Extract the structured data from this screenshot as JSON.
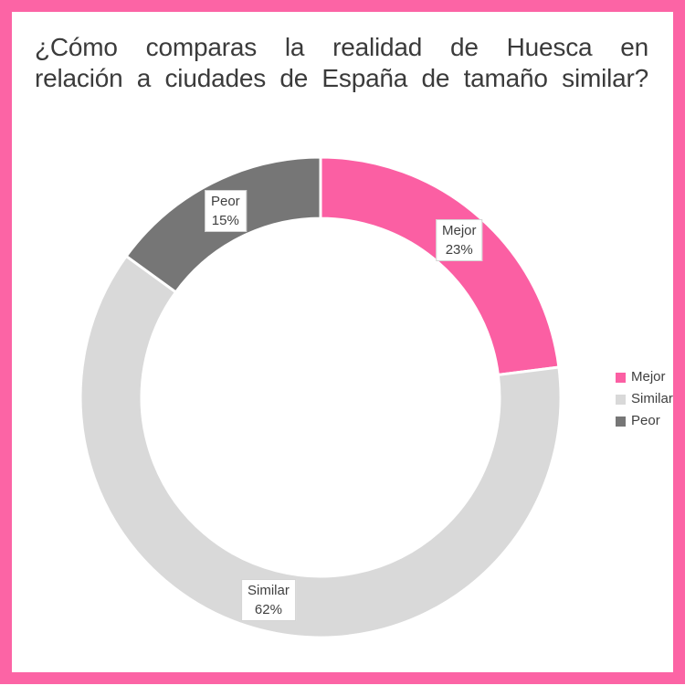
{
  "frame": {
    "border_color": "#FC64A5",
    "background_color": "#FFFFFF"
  },
  "title": {
    "text": "¿Cómo comparas la realidad de Huesca en relación a ciudades de España de tamaño similar?",
    "lines": [
      "¿Cómo comparas la realidad de Huesca en",
      "relación a ciudades de España de tamaño similar?"
    ],
    "color": "#3B3B3B"
  },
  "chart_data": {
    "type": "pie",
    "subtype": "donut",
    "categories": [
      "Mejor",
      "Similar",
      "Peor"
    ],
    "values": [
      23,
      62,
      15
    ],
    "value_labels": [
      "23%",
      "62%",
      "15%"
    ],
    "unit": "%",
    "colors": [
      "#FB5FA3",
      "#D9D9D9",
      "#767676"
    ],
    "start_angle_deg": 0,
    "direction": "clockwise",
    "inner_radius_ratio": 0.745,
    "slice_separator_color": "#FFFFFF",
    "label_box": {
      "background": "#FFFFFF",
      "border_color": "#D4D4D4",
      "text_color": "#3F3F3F"
    },
    "legend": {
      "position": "right",
      "entries": [
        "Mejor",
        "Similar",
        "Peor"
      ]
    }
  }
}
